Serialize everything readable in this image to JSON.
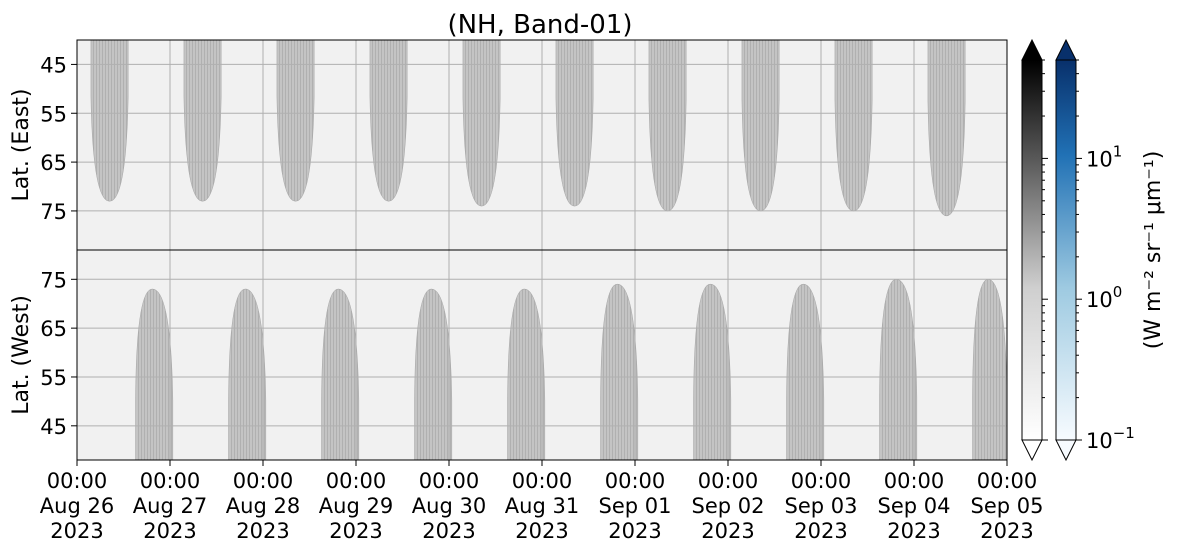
{
  "chart_data": {
    "type": "heatmap",
    "title": "(NH, Band-01)",
    "panels": [
      {
        "name": "East",
        "ylabel": "Lat. (East)",
        "ylim": [
          40,
          83
        ],
        "yticks": [
          45,
          55,
          65,
          75
        ],
        "yaxis_direction": "increasing-down",
        "shaded_regions_day_start": [
          0.15,
          1.15,
          2.15,
          3.15,
          4.15,
          5.15,
          6.15,
          7.15,
          8.15,
          9.15
        ],
        "shaded_regions_day_end": [
          0.55,
          1.55,
          2.55,
          3.55,
          4.55,
          5.55,
          6.55,
          7.55,
          8.55,
          9.55
        ],
        "shaded_regions_max_lat": [
          73,
          73,
          73,
          73,
          74,
          74,
          75,
          75,
          75,
          76
        ]
      },
      {
        "name": "West",
        "ylabel": "Lat. (West)",
        "ylim": [
          38,
          81
        ],
        "yticks": [
          45,
          55,
          65,
          75
        ],
        "yaxis_direction": "increasing-up",
        "shaded_regions_day_start": [
          0.63,
          1.63,
          2.63,
          3.63,
          4.63,
          5.63,
          6.63,
          7.63,
          8.63,
          9.63
        ],
        "shaded_regions_day_end": [
          1.03,
          2.03,
          3.03,
          4.03,
          5.03,
          6.03,
          7.03,
          8.03,
          9.03,
          10.0
        ],
        "shaded_regions_max_lat": [
          73,
          73,
          73,
          73,
          73,
          74,
          74,
          74,
          75,
          75
        ]
      }
    ],
    "x_tick_labels": [
      [
        "00:00",
        "Aug 26",
        "2023"
      ],
      [
        "00:00",
        "Aug 27",
        "2023"
      ],
      [
        "00:00",
        "Aug 28",
        "2023"
      ],
      [
        "00:00",
        "Aug 29",
        "2023"
      ],
      [
        "00:00",
        "Aug 30",
        "2023"
      ],
      [
        "00:00",
        "Aug 31",
        "2023"
      ],
      [
        "00:00",
        "Sep 01",
        "2023"
      ],
      [
        "00:00",
        "Sep 02",
        "2023"
      ],
      [
        "00:00",
        "Sep 03",
        "2023"
      ],
      [
        "00:00",
        "Sep 04",
        "2023"
      ],
      [
        "00:00",
        "Sep 05",
        "2023"
      ]
    ],
    "xlim_days": [
      0,
      10
    ],
    "grid": true,
    "colorbars": [
      {
        "name": "gray",
        "colormap": "Greys",
        "color_low": "#ffffff",
        "color_high": "#000000",
        "scale": "log",
        "extend": "both"
      },
      {
        "name": "blue",
        "colormap": "Blues",
        "color_low": "#f7fbff",
        "color_high": "#08306b",
        "scale": "log",
        "extend": "both"
      }
    ],
    "colorbar_label": "(W m⁻² sr⁻¹ μm⁻¹)",
    "colorbar_ticks": [
      {
        "base": "10",
        "exponent": "1",
        "value": 10
      },
      {
        "base": "10",
        "exponent": "0",
        "value": 1
      },
      {
        "base": "10",
        "exponent": "−1",
        "value": 0.1
      }
    ],
    "colorbar_range": [
      0.1,
      50
    ]
  }
}
